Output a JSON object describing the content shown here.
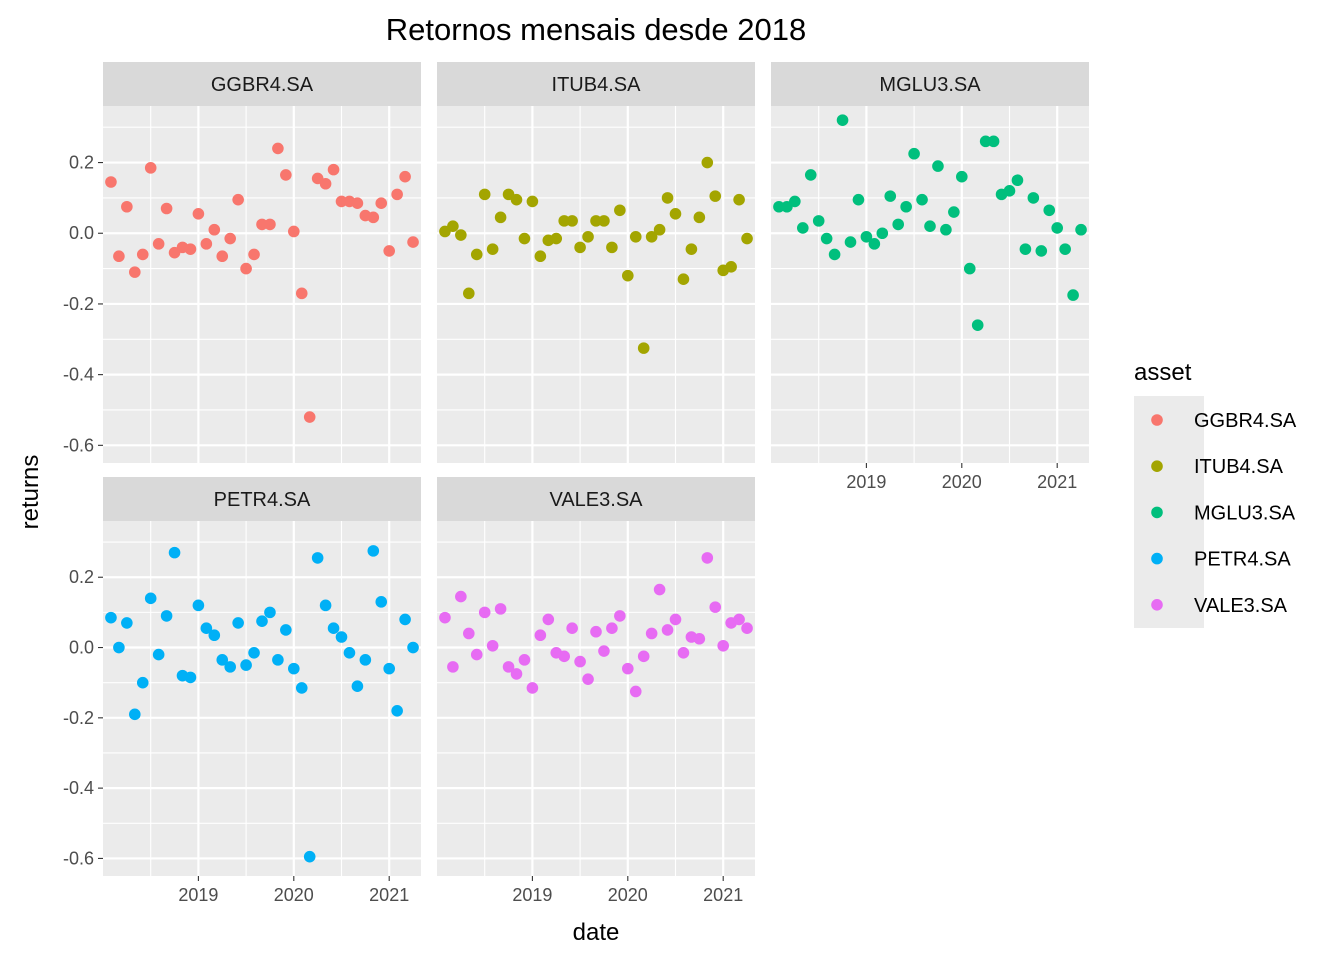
{
  "chart_data": {
    "type": "scatter",
    "title": "Retornos mensais desde 2018",
    "xlabel": "date",
    "ylabel": "returns",
    "x": [
      "2018-02",
      "2018-03",
      "2018-04",
      "2018-05",
      "2018-06",
      "2018-07",
      "2018-08",
      "2018-09",
      "2018-10",
      "2018-11",
      "2018-12",
      "2019-01",
      "2019-02",
      "2019-03",
      "2019-04",
      "2019-05",
      "2019-06",
      "2019-07",
      "2019-08",
      "2019-09",
      "2019-10",
      "2019-11",
      "2019-12",
      "2020-01",
      "2020-02",
      "2020-03",
      "2020-04",
      "2020-05",
      "2020-06",
      "2020-07",
      "2020-08",
      "2020-09",
      "2020-10",
      "2020-11",
      "2020-12",
      "2021-01",
      "2021-02",
      "2021-03",
      "2021-04"
    ],
    "xlim": [
      "2018-01",
      "2021-05"
    ],
    "x_ticks": [
      {
        "date": "2019-01",
        "label": "2019"
      },
      {
        "date": "2020-01",
        "label": "2020"
      },
      {
        "date": "2021-01",
        "label": "2021"
      }
    ],
    "ylim": [
      -0.65,
      0.36
    ],
    "y_ticks": [
      {
        "value": 0.2,
        "label": "0.2"
      },
      {
        "value": 0.0,
        "label": "0.0"
      },
      {
        "value": -0.2,
        "label": "-0.2"
      },
      {
        "value": -0.4,
        "label": "-0.4"
      },
      {
        "value": -0.6,
        "label": "-0.6"
      }
    ],
    "grid": true,
    "facets": "wrap-3-columns",
    "legend": {
      "title": "asset",
      "position": "right"
    },
    "series": [
      {
        "name": "GGBR4.SA",
        "color": "#F8766D",
        "values": [
          0.145,
          -0.065,
          0.075,
          -0.11,
          -0.06,
          0.185,
          -0.03,
          0.07,
          -0.055,
          -0.04,
          -0.045,
          0.055,
          -0.03,
          0.01,
          -0.065,
          -0.015,
          0.095,
          -0.1,
          -0.06,
          0.025,
          0.025,
          0.24,
          0.165,
          0.005,
          -0.17,
          -0.52,
          0.155,
          0.14,
          0.18,
          0.09,
          0.09,
          0.085,
          0.05,
          0.045,
          0.085,
          -0.05,
          0.11,
          0.16,
          -0.025
        ]
      },
      {
        "name": "ITUB4.SA",
        "color": "#A3A500",
        "values": [
          0.005,
          0.02,
          -0.005,
          -0.17,
          -0.06,
          0.11,
          -0.045,
          0.045,
          0.11,
          0.095,
          -0.015,
          0.09,
          -0.065,
          -0.02,
          -0.015,
          0.035,
          0.035,
          -0.04,
          -0.01,
          0.035,
          0.035,
          -0.04,
          0.065,
          -0.12,
          -0.01,
          -0.325,
          -0.01,
          0.01,
          0.1,
          0.055,
          -0.13,
          -0.045,
          0.045,
          0.2,
          0.105,
          -0.105,
          -0.095,
          0.095,
          -0.015
        ]
      },
      {
        "name": "MGLU3.SA",
        "color": "#00BF7D",
        "values": [
          0.075,
          0.075,
          0.09,
          0.015,
          0.165,
          0.035,
          -0.015,
          -0.06,
          0.32,
          -0.025,
          0.095,
          -0.01,
          -0.03,
          0.0,
          0.105,
          0.025,
          0.075,
          0.225,
          0.095,
          0.02,
          0.19,
          0.01,
          0.06,
          0.16,
          -0.1,
          -0.26,
          0.26,
          0.26,
          0.11,
          0.12,
          0.15,
          -0.045,
          0.1,
          -0.05,
          0.065,
          0.015,
          -0.045,
          -0.175,
          0.01
        ]
      },
      {
        "name": "PETR4.SA",
        "color": "#00B0F6",
        "values": [
          0.085,
          0.0,
          0.07,
          -0.19,
          -0.1,
          0.14,
          -0.02,
          0.09,
          0.27,
          -0.08,
          -0.085,
          0.12,
          0.055,
          0.035,
          -0.035,
          -0.055,
          0.07,
          -0.05,
          -0.015,
          0.075,
          0.1,
          -0.035,
          0.05,
          -0.06,
          -0.115,
          -0.595,
          0.255,
          0.12,
          0.055,
          0.03,
          -0.015,
          -0.11,
          -0.035,
          0.275,
          0.13,
          -0.06,
          -0.18,
          0.08,
          0.0
        ]
      },
      {
        "name": "VALE3.SA",
        "color": "#E76BF3",
        "values": [
          0.085,
          -0.055,
          0.145,
          0.04,
          -0.02,
          0.1,
          0.005,
          0.11,
          -0.055,
          -0.075,
          -0.035,
          -0.115,
          0.035,
          0.08,
          -0.015,
          -0.025,
          0.055,
          -0.04,
          -0.09,
          0.045,
          -0.01,
          0.055,
          0.09,
          -0.06,
          -0.125,
          -0.025,
          0.04,
          0.165,
          0.05,
          0.08,
          -0.015,
          0.03,
          0.025,
          0.255,
          0.115,
          0.005,
          0.07,
          0.08,
          0.055
        ]
      }
    ]
  }
}
